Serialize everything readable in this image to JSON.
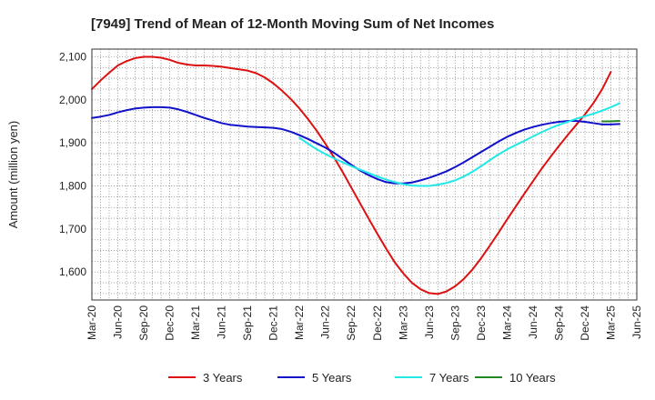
{
  "chart_data": {
    "type": "line",
    "title": "[7949]  Trend of Mean of 12-Month Moving Sum of Net Incomes",
    "ylabel": "Amount (million yen)",
    "xlabel": "",
    "ylim": [
      1535,
      2118
    ],
    "yticks": [
      1600,
      1700,
      1800,
      1900,
      2000,
      2100
    ],
    "ytick_labels": [
      "1,600",
      "1,700",
      "1,800",
      "1,900",
      "2,000",
      "2,100"
    ],
    "xlim": [
      "2020-03",
      "2025-06"
    ],
    "xtick_labels": [
      "Mar-20",
      "Jun-20",
      "Sep-20",
      "Dec-20",
      "Mar-21",
      "Jun-21",
      "Sep-21",
      "Dec-21",
      "Mar-22",
      "Jun-22",
      "Sep-22",
      "Dec-22",
      "Mar-23",
      "Jun-23",
      "Sep-23",
      "Dec-23",
      "Mar-24",
      "Jun-24",
      "Sep-24",
      "Dec-24",
      "Mar-25",
      "Jun-25"
    ],
    "grid": true,
    "legend_position": "bottom",
    "series": [
      {
        "name": "3 Years",
        "color": "#dd1111",
        "points": [
          [
            "2020-03",
            2025
          ],
          [
            "2020-04",
            2045
          ],
          [
            "2020-05",
            2063
          ],
          [
            "2020-06",
            2080
          ],
          [
            "2020-07",
            2090
          ],
          [
            "2020-08",
            2097
          ],
          [
            "2020-09",
            2100
          ],
          [
            "2020-10",
            2100
          ],
          [
            "2020-11",
            2098
          ],
          [
            "2020-12",
            2093
          ],
          [
            "2021-01",
            2086
          ],
          [
            "2021-02",
            2082
          ],
          [
            "2021-03",
            2080
          ],
          [
            "2021-04",
            2080
          ],
          [
            "2021-05",
            2079
          ],
          [
            "2021-06",
            2077
          ],
          [
            "2021-07",
            2074
          ],
          [
            "2021-08",
            2071
          ],
          [
            "2021-09",
            2068
          ],
          [
            "2021-10",
            2062
          ],
          [
            "2021-11",
            2052
          ],
          [
            "2021-12",
            2038
          ],
          [
            "2022-01",
            2021
          ],
          [
            "2022-02",
            2002
          ],
          [
            "2022-03",
            1980
          ],
          [
            "2022-04",
            1955
          ],
          [
            "2022-05",
            1928
          ],
          [
            "2022-06",
            1898
          ],
          [
            "2022-07",
            1866
          ],
          [
            "2022-08",
            1832
          ],
          [
            "2022-09",
            1796
          ],
          [
            "2022-10",
            1760
          ],
          [
            "2022-11",
            1724
          ],
          [
            "2022-12",
            1689
          ],
          [
            "2023-01",
            1655
          ],
          [
            "2023-02",
            1623
          ],
          [
            "2023-03",
            1597
          ],
          [
            "2023-04",
            1575
          ],
          [
            "2023-05",
            1560
          ],
          [
            "2023-06",
            1551
          ],
          [
            "2023-07",
            1549
          ],
          [
            "2023-08",
            1555
          ],
          [
            "2023-09",
            1567
          ],
          [
            "2023-10",
            1584
          ],
          [
            "2023-11",
            1606
          ],
          [
            "2023-12",
            1632
          ],
          [
            "2024-01",
            1661
          ],
          [
            "2024-02",
            1691
          ],
          [
            "2024-03",
            1722
          ],
          [
            "2024-04",
            1752
          ],
          [
            "2024-05",
            1782
          ],
          [
            "2024-06",
            1811
          ],
          [
            "2024-07",
            1840
          ],
          [
            "2024-08",
            1867
          ],
          [
            "2024-09",
            1893
          ],
          [
            "2024-10",
            1918
          ],
          [
            "2024-11",
            1942
          ],
          [
            "2024-12",
            1966
          ],
          [
            "2025-01",
            1993
          ],
          [
            "2025-02",
            2025
          ],
          [
            "2025-03",
            2065
          ]
        ]
      },
      {
        "name": "5 Years",
        "color": "#1111cc",
        "points": [
          [
            "2020-03",
            1958
          ],
          [
            "2020-04",
            1961
          ],
          [
            "2020-05",
            1965
          ],
          [
            "2020-06",
            1971
          ],
          [
            "2020-07",
            1976
          ],
          [
            "2020-08",
            1980
          ],
          [
            "2020-09",
            1982
          ],
          [
            "2020-10",
            1983
          ],
          [
            "2020-11",
            1983
          ],
          [
            "2020-12",
            1982
          ],
          [
            "2021-01",
            1978
          ],
          [
            "2021-02",
            1972
          ],
          [
            "2021-03",
            1965
          ],
          [
            "2021-04",
            1958
          ],
          [
            "2021-05",
            1952
          ],
          [
            "2021-06",
            1946
          ],
          [
            "2021-07",
            1942
          ],
          [
            "2021-08",
            1940
          ],
          [
            "2021-09",
            1938
          ],
          [
            "2021-10",
            1937
          ],
          [
            "2021-11",
            1936
          ],
          [
            "2021-12",
            1935
          ],
          [
            "2022-01",
            1932
          ],
          [
            "2022-02",
            1926
          ],
          [
            "2022-03",
            1918
          ],
          [
            "2022-04",
            1909
          ],
          [
            "2022-05",
            1899
          ],
          [
            "2022-06",
            1889
          ],
          [
            "2022-07",
            1877
          ],
          [
            "2022-08",
            1863
          ],
          [
            "2022-09",
            1849
          ],
          [
            "2022-10",
            1836
          ],
          [
            "2022-11",
            1825
          ],
          [
            "2022-12",
            1816
          ],
          [
            "2023-01",
            1809
          ],
          [
            "2023-02",
            1806
          ],
          [
            "2023-03",
            1806
          ],
          [
            "2023-04",
            1808
          ],
          [
            "2023-05",
            1813
          ],
          [
            "2023-06",
            1819
          ],
          [
            "2023-07",
            1826
          ],
          [
            "2023-08",
            1834
          ],
          [
            "2023-09",
            1844
          ],
          [
            "2023-10",
            1855
          ],
          [
            "2023-11",
            1867
          ],
          [
            "2023-12",
            1879
          ],
          [
            "2024-01",
            1891
          ],
          [
            "2024-02",
            1903
          ],
          [
            "2024-03",
            1914
          ],
          [
            "2024-04",
            1923
          ],
          [
            "2024-05",
            1931
          ],
          [
            "2024-06",
            1937
          ],
          [
            "2024-07",
            1942
          ],
          [
            "2024-08",
            1946
          ],
          [
            "2024-09",
            1949
          ],
          [
            "2024-10",
            1951
          ],
          [
            "2024-11",
            1951
          ],
          [
            "2024-12",
            1949
          ],
          [
            "2025-01",
            1946
          ],
          [
            "2025-02",
            1943
          ],
          [
            "2025-03",
            1943
          ],
          [
            "2025-04",
            1944
          ]
        ]
      },
      {
        "name": "7 Years",
        "color": "#22e8e8",
        "points": [
          [
            "2022-03",
            1912
          ],
          [
            "2022-04",
            1898
          ],
          [
            "2022-05",
            1885
          ],
          [
            "2022-06",
            1874
          ],
          [
            "2022-07",
            1864
          ],
          [
            "2022-08",
            1855
          ],
          [
            "2022-09",
            1846
          ],
          [
            "2022-10",
            1838
          ],
          [
            "2022-11",
            1830
          ],
          [
            "2022-12",
            1822
          ],
          [
            "2023-01",
            1815
          ],
          [
            "2023-02",
            1809
          ],
          [
            "2023-03",
            1804
          ],
          [
            "2023-04",
            1801
          ],
          [
            "2023-05",
            1800
          ],
          [
            "2023-06",
            1800
          ],
          [
            "2023-07",
            1803
          ],
          [
            "2023-08",
            1807
          ],
          [
            "2023-09",
            1813
          ],
          [
            "2023-10",
            1822
          ],
          [
            "2023-11",
            1833
          ],
          [
            "2023-12",
            1846
          ],
          [
            "2024-01",
            1860
          ],
          [
            "2024-02",
            1873
          ],
          [
            "2024-03",
            1885
          ],
          [
            "2024-04",
            1895
          ],
          [
            "2024-05",
            1905
          ],
          [
            "2024-06",
            1915
          ],
          [
            "2024-07",
            1925
          ],
          [
            "2024-08",
            1934
          ],
          [
            "2024-09",
            1942
          ],
          [
            "2024-10",
            1949
          ],
          [
            "2024-11",
            1956
          ],
          [
            "2024-12",
            1962
          ],
          [
            "2025-01",
            1968
          ],
          [
            "2025-02",
            1975
          ],
          [
            "2025-03",
            1983
          ],
          [
            "2025-04",
            1992
          ]
        ]
      },
      {
        "name": "10 Years",
        "color": "#228822",
        "points": [
          [
            "2025-02",
            1950
          ],
          [
            "2025-03",
            1950
          ],
          [
            "2025-04",
            1951
          ]
        ]
      }
    ]
  }
}
